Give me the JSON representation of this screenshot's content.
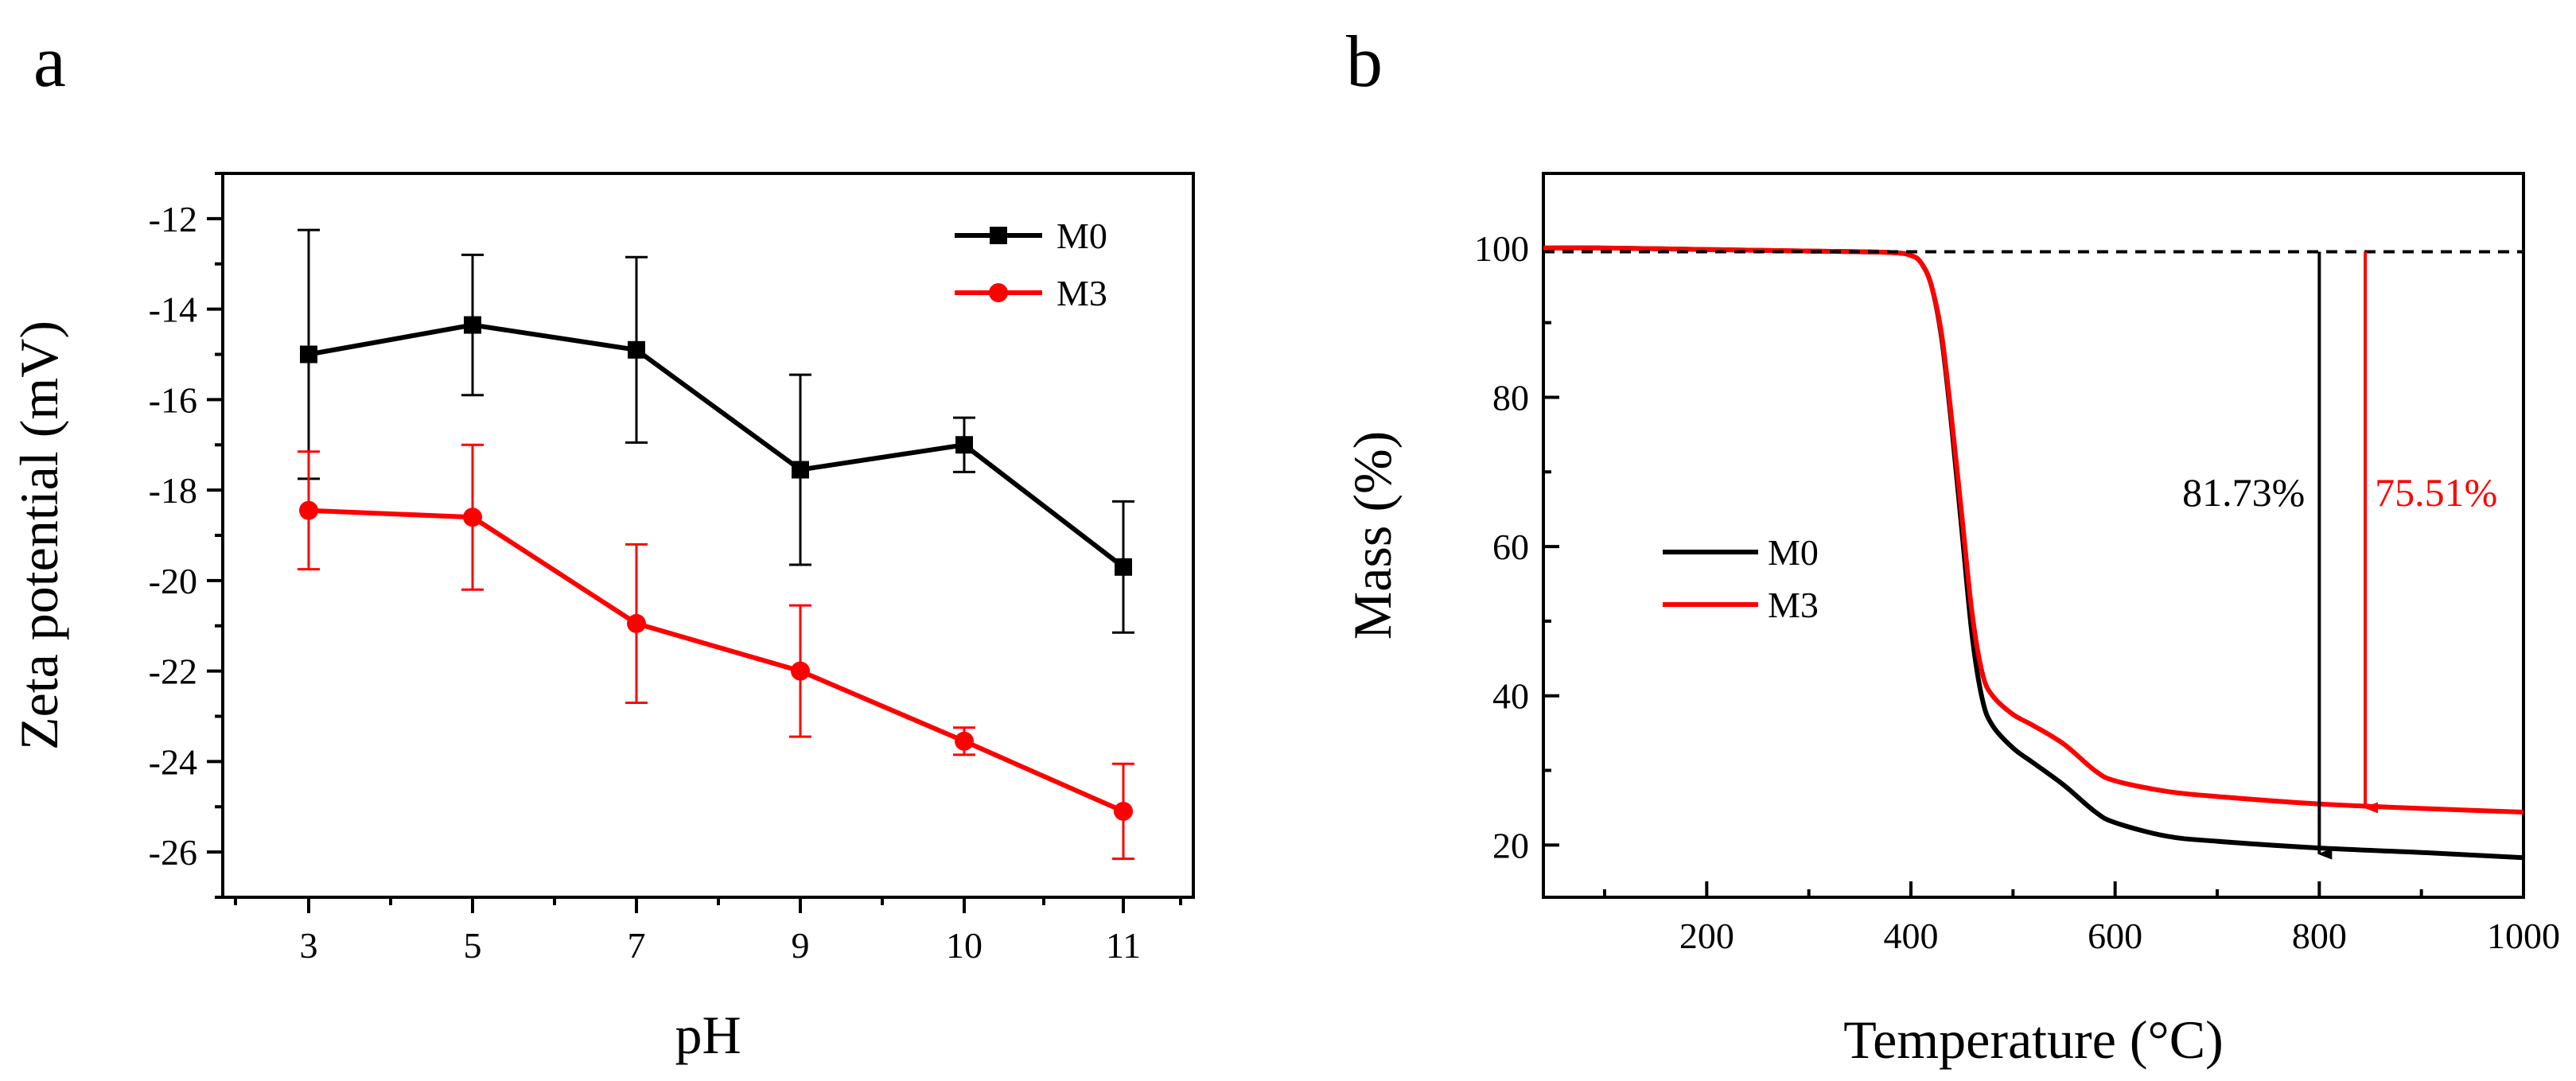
{
  "chart_data": [
    {
      "panel": "a",
      "type": "line",
      "title": "",
      "xlabel": "pH",
      "ylabel": "Zeta potential (mV)",
      "categories": [
        "3",
        "5",
        "7",
        "9",
        "10",
        "11"
      ],
      "ylim": [
        -27,
        -11
      ],
      "yticks": [
        -12,
        -14,
        -16,
        -18,
        -20,
        -22,
        -24,
        -26
      ],
      "ytick_labels": [
        "-12",
        "-14",
        "-16",
        "-18",
        "-20",
        "-22",
        "-24",
        "-26"
      ],
      "legend_position": "top-right",
      "series": [
        {
          "name": "M0",
          "color": "#000000",
          "marker": "square",
          "values": [
            -15.0,
            -14.35,
            -14.9,
            -17.55,
            -17.0,
            -19.7
          ],
          "errors": [
            2.75,
            1.55,
            2.05,
            2.1,
            0.6,
            1.45
          ]
        },
        {
          "name": "M3",
          "color": "#ff0000",
          "marker": "circle",
          "values": [
            -18.45,
            -18.6,
            -20.95,
            -22.0,
            -23.55,
            -25.1
          ],
          "errors": [
            1.3,
            1.6,
            1.75,
            1.45,
            0.3,
            1.05
          ]
        }
      ]
    },
    {
      "panel": "b",
      "type": "line",
      "title": "",
      "xlabel": "Temperature (°C)",
      "ylabel": "Mass (%)",
      "xlim": [
        40,
        1000
      ],
      "ylim": [
        13,
        110
      ],
      "xticks": [
        200,
        400,
        600,
        800,
        1000
      ],
      "xtick_labels": [
        "200",
        "400",
        "600",
        "800",
        "1000"
      ],
      "yticks": [
        20,
        40,
        60,
        80,
        100
      ],
      "ytick_labels": [
        "20",
        "40",
        "60",
        "80",
        "100"
      ],
      "legend_position": "center-left",
      "reference_line": {
        "y": 99.5,
        "style": "dashed"
      },
      "series": [
        {
          "name": "M0",
          "color": "#000000",
          "x": [
            40,
            100,
            200,
            300,
            380,
            400,
            410,
            420,
            430,
            440,
            450,
            460,
            470,
            480,
            500,
            520,
            550,
            580,
            600,
            650,
            700,
            800,
            900,
            1000
          ],
          "y": [
            100,
            100,
            99.8,
            99.6,
            99.4,
            99.0,
            98.0,
            95.0,
            88.0,
            76.0,
            62.0,
            48.0,
            39.5,
            36.0,
            33.0,
            31.0,
            28.0,
            24.5,
            23.0,
            21.2,
            20.5,
            19.6,
            19.0,
            18.3
          ]
        },
        {
          "name": "M3",
          "color": "#ff0000",
          "x": [
            40,
            100,
            200,
            300,
            380,
            400,
            410,
            420,
            430,
            440,
            450,
            460,
            470,
            480,
            500,
            520,
            550,
            580,
            600,
            650,
            700,
            800,
            900,
            1000
          ],
          "y": [
            100,
            100,
            99.8,
            99.6,
            99.4,
            99.0,
            98.0,
            95.0,
            88.5,
            77.0,
            64.0,
            51.0,
            43.0,
            40.0,
            37.5,
            36.0,
            33.5,
            30.0,
            28.6,
            27.2,
            26.5,
            25.5,
            24.9,
            24.4
          ]
        }
      ],
      "annotations": [
        {
          "label": "81.73%",
          "color": "#000000",
          "arrow_x": 800,
          "from_y": 99.5,
          "to_y": 18.8
        },
        {
          "label": "75.51%",
          "color": "#ff0000",
          "arrow_x": 845,
          "from_y": 99.5,
          "to_y": 25.0
        }
      ]
    }
  ],
  "panels": {
    "a_label": "a",
    "b_label": "b"
  }
}
